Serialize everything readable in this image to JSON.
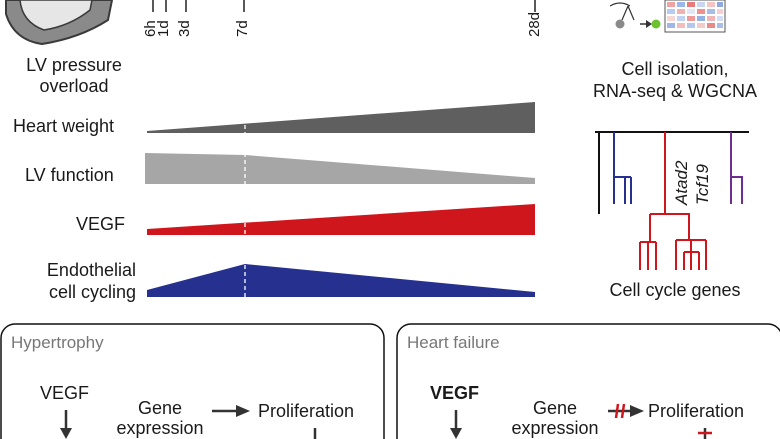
{
  "timeline": {
    "ticks": [
      "6h",
      "1d",
      "3d",
      "7d",
      "28d"
    ]
  },
  "left_panel": {
    "model_label_line1": "LV pressure",
    "model_label_line2": "overload"
  },
  "parameters": {
    "heart_weight": "Heart weight",
    "lv_function": "LV function",
    "vegf": "VEGF",
    "ec_line1": "Endothelial",
    "ec_line2": "cell cycling"
  },
  "right_panel": {
    "isolation_line1": "Cell isolation,",
    "isolation_line2": "RNA-seq & WGCNA",
    "gene1": "Atad2",
    "gene2": "Tcf19",
    "cell_cycle_genes": "Cell cycle genes"
  },
  "bottom": {
    "hypertrophy": {
      "title": "Hypertrophy",
      "vegf": "VEGF",
      "gene_line1": "Gene",
      "gene_line2": "expression",
      "proliferation": "Proliferation"
    },
    "heart_failure": {
      "title": "Heart failure",
      "vegf": "VEGF",
      "gene_line1": "Gene",
      "gene_line2": "expression",
      "proliferation": "Proliferation"
    }
  },
  "colors": {
    "heart_weight": "#5f5f5f",
    "lv_function": "#a6a6a6",
    "vegf": "#d0161d",
    "ec_cycling": "#26318f",
    "purple": "#6f2c91",
    "green_dot": "#6cc12f",
    "grey_dot": "#8a8a8a"
  }
}
